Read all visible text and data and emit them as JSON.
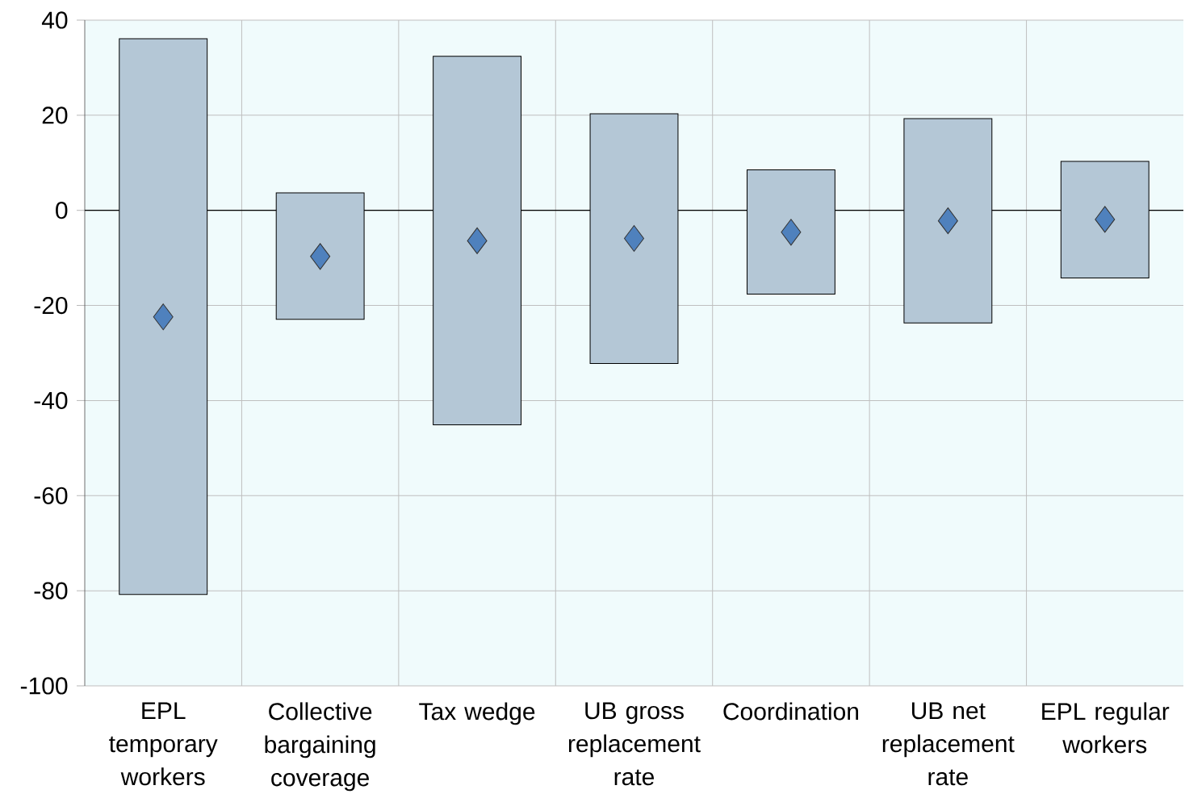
{
  "chart_data": {
    "type": "bar",
    "categories": [
      "EPL temporary workers",
      "Collective bargaining coverage",
      "Tax wedge",
      "UB gross replacement rate",
      "Coordination",
      "UB net replacement rate",
      "EPL regular workers"
    ],
    "series": [
      {
        "color": "#b4c7d6",
        "base": [
          -80.8,
          -22.9,
          -45.1,
          -32.2,
          -17.6,
          -23.7,
          -14.2
        ],
        "values": [
          116.9,
          26.6,
          77.5,
          52.5,
          26.1,
          43.0,
          24.5
        ]
      },
      {
        "type": "scatter",
        "color": "#4f81bd",
        "marker": "diamond",
        "x": [
          "EPL temporary workers",
          "Collective bargaining coverage",
          "Tax wedge",
          "UB gross replacement rate",
          "Coordination",
          "UB net replacement rate",
          "EPL regular workers"
        ],
        "values": [
          -22.4,
          -9.7,
          -6.4,
          -5.9,
          -4.6,
          -2.2,
          -1.9
        ]
      }
    ],
    "ylim": [
      -100,
      40
    ],
    "yticks": [
      -100,
      -80,
      -60,
      -40,
      -20,
      0,
      20,
      40
    ],
    "grid": true,
    "ref_lines": [
      {
        "axis": "y",
        "value": 0,
        "color": "#000000"
      }
    ]
  }
}
